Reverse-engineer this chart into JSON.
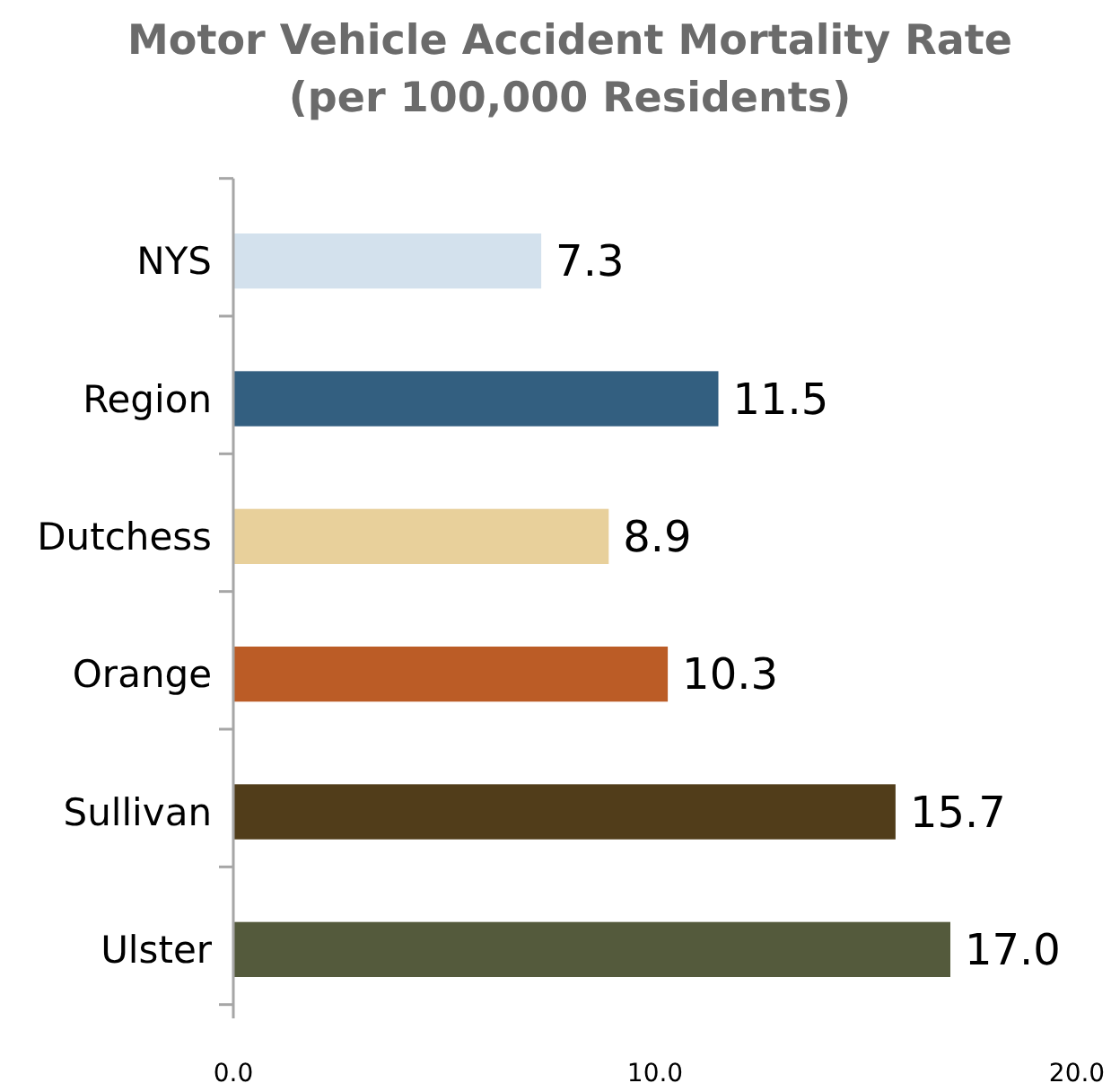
{
  "chart_data": {
    "type": "bar",
    "orientation": "horizontal",
    "title": "Motor Vehicle Accident Mortality Rate\n(per 100,000 Residents)",
    "categories": [
      "NYS",
      "Region",
      "Dutchess",
      "Orange",
      "Sullivan",
      "Ulster"
    ],
    "values": [
      7.3,
      11.5,
      8.9,
      10.3,
      15.7,
      17.0
    ],
    "value_labels": [
      "7.3",
      "11.5",
      "8.9",
      "10.3",
      "15.7",
      "17.0"
    ],
    "colors": [
      "#d3e1ed",
      "#335f80",
      "#e8d09b",
      "#bb5c26",
      "#513d1a",
      "#545a3c"
    ],
    "xlim": [
      0,
      20
    ],
    "xticks": [
      {
        "value": 0,
        "label": "0.0"
      },
      {
        "value": 10,
        "label": "10.0"
      },
      {
        "value": 20,
        "label": "20.0"
      }
    ],
    "grid": false
  }
}
